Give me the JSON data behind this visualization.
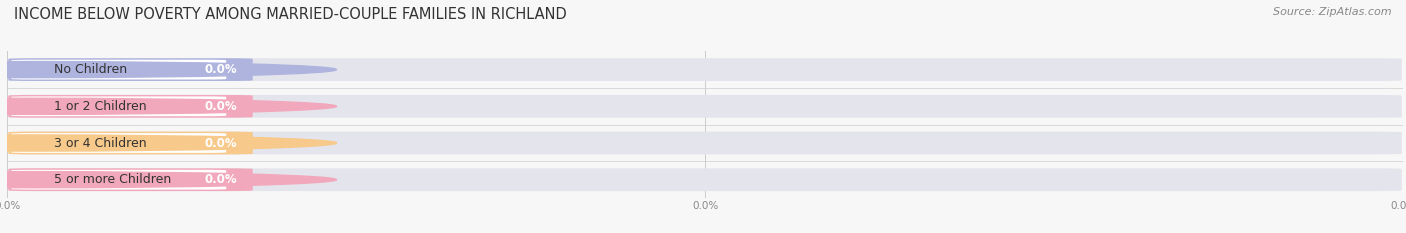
{
  "title": "INCOME BELOW POVERTY AMONG MARRIED-COUPLE FAMILIES IN RICHLAND",
  "source": "Source: ZipAtlas.com",
  "categories": [
    "No Children",
    "1 or 2 Children",
    "3 or 4 Children",
    "5 or more Children"
  ],
  "values": [
    0.0,
    0.0,
    0.0,
    0.0
  ],
  "bar_colors": [
    "#aeb4de",
    "#f2a8bc",
    "#f7c98a",
    "#f2a8bc"
  ],
  "dot_colors": [
    "#9098cc",
    "#e87898",
    "#e8a84e",
    "#e87898"
  ],
  "background_color": "#f7f7f7",
  "bar_bg_color": "#e4e4ec",
  "title_fontsize": 10.5,
  "label_fontsize": 9,
  "value_fontsize": 8.5,
  "source_fontsize": 8
}
